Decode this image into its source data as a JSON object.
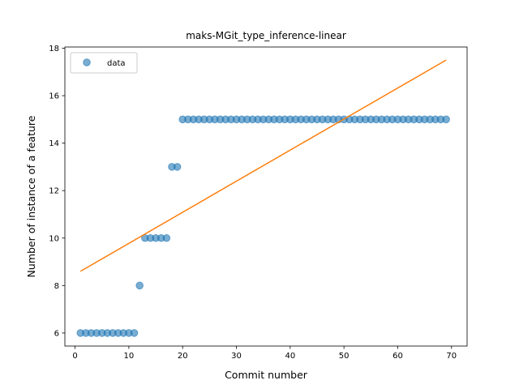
{
  "chart_data": {
    "type": "scatter",
    "title": "maks-MGit_type_inference-linear",
    "xlabel": "Commit number",
    "ylabel": "Number of instance of a feature",
    "xlim": [
      -1.9,
      72.9
    ],
    "ylim": [
      5.45,
      18.05
    ],
    "xticks": [
      0,
      10,
      20,
      30,
      40,
      50,
      60,
      70
    ],
    "yticks": [
      6,
      8,
      10,
      12,
      14,
      16,
      18
    ],
    "grid": false,
    "legend": {
      "position": "upper-left",
      "entries": [
        "data"
      ]
    },
    "series": [
      {
        "name": "data",
        "kind": "scatter",
        "color": "#1f77b4",
        "x": [
          1,
          2,
          3,
          4,
          5,
          6,
          7,
          8,
          9,
          10,
          11,
          12,
          13,
          14,
          15,
          16,
          17,
          18,
          19,
          20,
          21,
          22,
          23,
          24,
          25,
          26,
          27,
          28,
          29,
          30,
          31,
          32,
          33,
          34,
          35,
          36,
          37,
          38,
          39,
          40,
          41,
          42,
          43,
          44,
          45,
          46,
          47,
          48,
          49,
          50,
          51,
          52,
          53,
          54,
          55,
          56,
          57,
          58,
          59,
          60,
          61,
          62,
          63,
          64,
          65,
          66,
          67,
          68,
          69
        ],
        "y": [
          6,
          6,
          6,
          6,
          6,
          6,
          6,
          6,
          6,
          6,
          6,
          8,
          10,
          10,
          10,
          10,
          10,
          13,
          13,
          15,
          15,
          15,
          15,
          15,
          15,
          15,
          15,
          15,
          15,
          15,
          15,
          15,
          15,
          15,
          15,
          15,
          15,
          15,
          15,
          15,
          15,
          15,
          15,
          15,
          15,
          15,
          15,
          15,
          15,
          15,
          15,
          15,
          15,
          15,
          15,
          15,
          15,
          15,
          15,
          15,
          15,
          15,
          15,
          15,
          15,
          15,
          15,
          15,
          15
        ]
      },
      {
        "kind": "line",
        "color": "#ff7f0e",
        "x": [
          1,
          69
        ],
        "y": [
          8.6,
          17.5
        ]
      }
    ]
  }
}
